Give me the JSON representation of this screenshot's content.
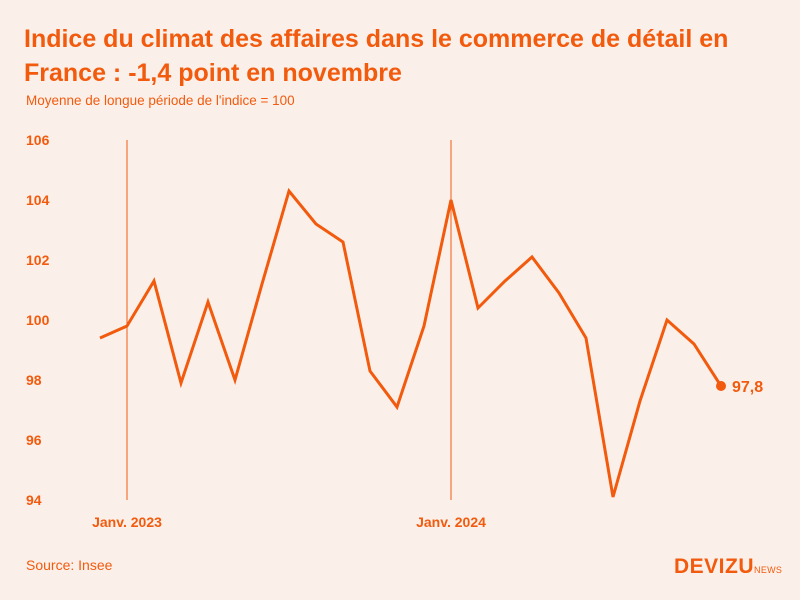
{
  "title": "Indice du climat des affaires dans le commerce de détail en France : -1,4 point en novembre",
  "subtitle": "Moyenne de longue période de l'indice = 100",
  "source": "Source: Insee",
  "logo": {
    "main": "DEVIZU",
    "sub": "NEWS"
  },
  "colors": {
    "accent": "#f25a0e",
    "background": "#fbf0e9"
  },
  "chart_data": {
    "type": "line",
    "title": "Indice du climat des affaires dans le commerce de détail en France : -1,4 point en novembre",
    "xlabel": "",
    "ylabel": "",
    "ylim": [
      94,
      106
    ],
    "yticks": [
      94,
      96,
      98,
      100,
      102,
      104,
      106
    ],
    "grid": false,
    "x": [
      "2022-12",
      "2023-01",
      "2023-02",
      "2023-03",
      "2023-04",
      "2023-05",
      "2023-06",
      "2023-07",
      "2023-08",
      "2023-09",
      "2023-10",
      "2023-11",
      "2023-12",
      "2024-01",
      "2024-02",
      "2024-03",
      "2024-04",
      "2024-05",
      "2024-06",
      "2024-07",
      "2024-08",
      "2024-09",
      "2024-10",
      "2024-11"
    ],
    "series": [
      {
        "values": [
          99.4,
          99.8,
          101.3,
          97.9,
          100.6,
          98.0,
          101.2,
          104.3,
          103.2,
          102.6,
          98.3,
          97.1,
          99.8,
          104.0,
          100.4,
          101.3,
          102.1,
          100.9,
          99.4,
          94.1,
          97.3,
          100.0,
          99.2,
          97.8
        ]
      }
    ],
    "reference_lines": [
      {
        "x": "2023-01",
        "label": "Janv. 2023"
      },
      {
        "x": "2024-01",
        "label": "Janv. 2024"
      }
    ],
    "end_label": "97,8"
  }
}
